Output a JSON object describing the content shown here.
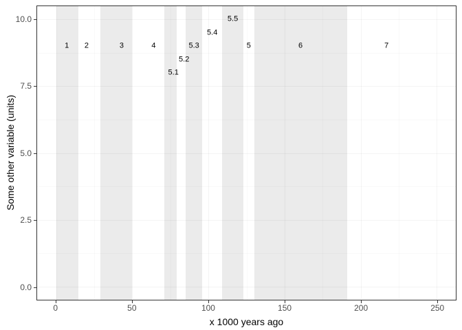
{
  "chart_data": {
    "type": "area",
    "subtype": "vertical_shaded_stage_bands_with_text_annotations",
    "title": "",
    "xlabel": "x 1000 years ago",
    "ylabel": "Some other variable (units)",
    "xlim": [
      -12.5,
      262.5
    ],
    "ylim": [
      -0.5,
      10.5
    ],
    "grid": "on",
    "legend": "none",
    "x_axis": {
      "tick_values": [
        0,
        50,
        100,
        150,
        200,
        250
      ],
      "tick_labels": [
        "0",
        "50",
        "100",
        "150",
        "200",
        "250"
      ],
      "minor_tick_values": [
        25,
        75,
        125,
        175,
        225
      ]
    },
    "y_axis": {
      "tick_values": [
        0,
        2.5,
        5,
        7.5,
        10
      ],
      "tick_labels": [
        "0.0",
        "2.5",
        "5.0",
        "7.5",
        "10.0"
      ],
      "minor_tick_values": [
        1.25,
        3.75,
        6.25,
        8.75
      ]
    },
    "stages": [
      {
        "label": "1",
        "start": 0,
        "end": 14.5,
        "shaded": true,
        "label_x": 7,
        "label_y": 9
      },
      {
        "label": "2",
        "start": 14.5,
        "end": 29,
        "shaded": false,
        "label_x": 20,
        "label_y": 9
      },
      {
        "label": "3",
        "start": 29,
        "end": 50,
        "shaded": true,
        "label_x": 43,
        "label_y": 9
      },
      {
        "label": "4",
        "start": 50,
        "end": 71,
        "shaded": false,
        "label_x": 64,
        "label_y": 9
      },
      {
        "label": "5.1",
        "start": 71,
        "end": 79,
        "shaded": true,
        "label_x": 77,
        "label_y": 8
      },
      {
        "label": "5.2",
        "start": 79,
        "end": 85,
        "shaded": false,
        "label_x": 84,
        "label_y": 8.5
      },
      {
        "label": "5.3",
        "start": 85,
        "end": 96,
        "shaded": true,
        "label_x": 90.5,
        "label_y": 9
      },
      {
        "label": "5.4",
        "start": 96,
        "end": 109,
        "shaded": false,
        "label_x": 102.5,
        "label_y": 9.5
      },
      {
        "label": "5.5",
        "start": 109,
        "end": 123,
        "shaded": true,
        "label_x": 116,
        "label_y": 10
      },
      {
        "label": "5",
        "start": 123,
        "end": 130,
        "shaded": false,
        "label_x": 126.5,
        "label_y": 9
      },
      {
        "label": "6",
        "start": 130,
        "end": 191,
        "shaded": true,
        "label_x": 160.5,
        "label_y": 9
      },
      {
        "label": "7",
        "start": 191,
        "end": 243,
        "shaded": false,
        "label_x": 217,
        "label_y": 9
      }
    ],
    "colors": {
      "band_fill": "rgba(0,0,0,0.078)",
      "grid_major": "rgba(0,0,0,0.045)",
      "grid_minor": "rgba(0,0,0,0.025)",
      "panel_border": "#333333",
      "tick_mark": "#333333",
      "tick_label": "#4d4d4d",
      "axis_title": "#000000",
      "stage_label": "#000000",
      "background": "#ffffff"
    }
  }
}
